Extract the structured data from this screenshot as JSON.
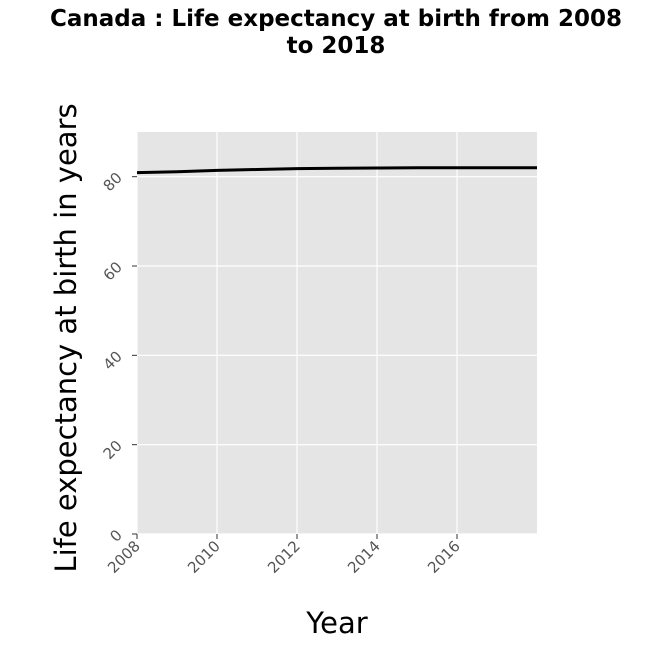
{
  "chart_data": {
    "type": "line",
    "title_line1": "Canada : Life expectancy at birth from 2008",
    "title_line2": "to 2018",
    "xlabel": "Year",
    "ylabel": "Life expectancy at birth in years",
    "xlim": [
      2008,
      2018
    ],
    "ylim": [
      0,
      90
    ],
    "x_ticks": [
      "2008",
      "2010",
      "2012",
      "2014",
      "2016"
    ],
    "y_ticks": [
      "0",
      "20",
      "40",
      "60",
      "80"
    ],
    "grid": true,
    "series": [
      {
        "x": [
          2008,
          2009,
          2010,
          2011,
          2012,
          2013,
          2014,
          2015,
          2016,
          2017,
          2018
        ],
        "values": [
          80.9,
          81.1,
          81.4,
          81.6,
          81.8,
          81.9,
          81.95,
          82.0,
          82.0,
          82.0,
          82.0
        ]
      }
    ],
    "colors": {
      "background": "#e5e5e5",
      "grid": "#ffffff",
      "line": "#000000"
    }
  }
}
